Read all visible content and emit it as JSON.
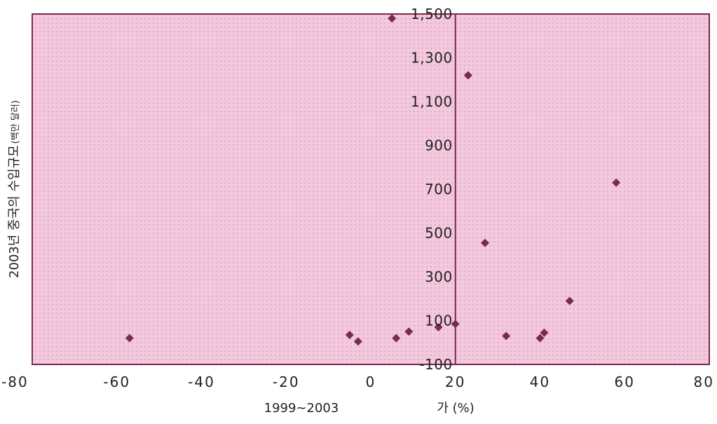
{
  "chart_data": {
    "type": "scatter",
    "title": "",
    "xlabel_left": "1999~2003",
    "xlabel_right": "가 (%)",
    "ylabel": "2003년 중국의 수입규모",
    "ylabel_unit": "(백만 달러)",
    "xlim": [
      -80,
      80
    ],
    "ylim": [
      -100,
      1500
    ],
    "x_ticks": [
      -80,
      -60,
      -40,
      -20,
      0,
      20,
      40,
      60,
      80
    ],
    "x_tick_labels": [
      "-80",
      "-60",
      "-40",
      "-20",
      "0",
      "20",
      "40",
      "60",
      "80"
    ],
    "y_ticks": [
      -100,
      100,
      300,
      500,
      700,
      900,
      1100,
      1300,
      1500
    ],
    "y_tick_labels": [
      "-100",
      "100",
      "300",
      "500",
      "700",
      "900",
      "1,100",
      "1,300",
      "1,500"
    ],
    "vertical_reference_x": 20,
    "grid": false,
    "points": [
      {
        "x": -57,
        "y": 20
      },
      {
        "x": -5,
        "y": 35
      },
      {
        "x": -3,
        "y": 5
      },
      {
        "x": 6,
        "y": 20
      },
      {
        "x": 9,
        "y": 50
      },
      {
        "x": 16,
        "y": 70
      },
      {
        "x": 20,
        "y": 85
      },
      {
        "x": 5,
        "y": 1480
      },
      {
        "x": 23,
        "y": 1220
      },
      {
        "x": 27,
        "y": 455
      },
      {
        "x": 32,
        "y": 30
      },
      {
        "x": 40,
        "y": 20
      },
      {
        "x": 41,
        "y": 45
      },
      {
        "x": 47,
        "y": 190
      },
      {
        "x": 58,
        "y": 730
      }
    ],
    "colors": {
      "plot_background": "#f3c9de",
      "pattern": "#e7aac8",
      "frame": "#7a2a52",
      "reference_line": "#7a2a52",
      "marker": "#7a2a52"
    }
  }
}
